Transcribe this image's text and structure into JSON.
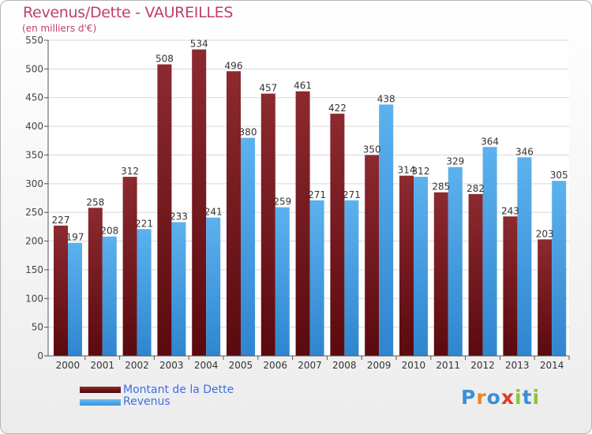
{
  "title": "Revenus/Dette - VAUREILLES",
  "subtitle": "(en milliers d'€)",
  "brand": {
    "text": "Proxiti",
    "letters": [
      {
        "ch": "P",
        "color": "#3a8fd8"
      },
      {
        "ch": "r",
        "color": "#e8862a"
      },
      {
        "ch": "o",
        "color": "#3a8fd8"
      },
      {
        "ch": "x",
        "color": "#e0382a"
      },
      {
        "ch": "i",
        "color": "#8cc43c"
      },
      {
        "ch": "t",
        "color": "#3a8fd8"
      },
      {
        "ch": "i",
        "color": "#8cc43c"
      }
    ]
  },
  "legend": [
    {
      "label": "Montant de la Dette",
      "color": "#6b0f14"
    },
    {
      "label": "Revenus",
      "color": "#4aa3e6"
    }
  ],
  "chart_data": {
    "type": "bar",
    "title": "Revenus/Dette - VAUREILLES",
    "ylabel": "(en milliers d'€)",
    "categories": [
      "2000",
      "2001",
      "2002",
      "2003",
      "2004",
      "2005",
      "2006",
      "2007",
      "2008",
      "2009",
      "2010",
      "2011",
      "2012",
      "2013",
      "2014"
    ],
    "series": [
      {
        "name": "Montant de la Dette",
        "color": "#7a1a1f",
        "values": [
          227,
          258,
          312,
          508,
          534,
          496,
          457,
          461,
          422,
          350,
          314,
          285,
          282,
          243,
          203
        ]
      },
      {
        "name": "Revenus",
        "color": "#4aa3e6",
        "values": [
          197,
          208,
          221,
          233,
          241,
          380,
          259,
          271,
          271,
          438,
          312,
          329,
          364,
          346,
          305
        ]
      }
    ],
    "ylim": [
      0,
      550
    ],
    "yticks": [
      0,
      50,
      100,
      150,
      200,
      250,
      300,
      350,
      400,
      450,
      500,
      550
    ],
    "grid": true,
    "legend_position": "bottom-left"
  }
}
